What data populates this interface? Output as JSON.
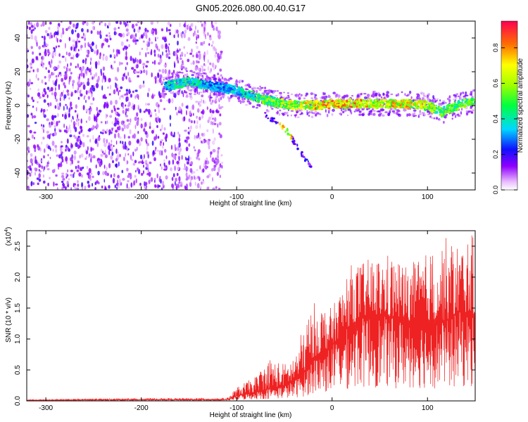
{
  "figure": {
    "title": "GN05.2026.080.00.40.G17"
  },
  "chart_data": [
    {
      "type": "heatmap",
      "xlabel": "Height of straight line (km)",
      "ylabel": "Frequency (Hz)",
      "xlim": [
        -320,
        150
      ],
      "ylim": [
        -50,
        50
      ],
      "x_ticks": [
        -300,
        -200,
        -100,
        0,
        100
      ],
      "y_ticks": [
        -40,
        -20,
        0,
        20,
        40
      ],
      "colorbar": {
        "label": "Normalized spectral amplitude",
        "range": [
          0,
          0.95
        ],
        "ticks": [
          0.0,
          0.2,
          0.4,
          0.6,
          0.8
        ],
        "tick_labels": [
          "0.0",
          "0.2",
          "0.4",
          "0.6",
          "0.8"
        ]
      },
      "noise_region": {
        "x": [
          -320,
          -115
        ],
        "y": [
          -50,
          50
        ]
      },
      "signal_track": [
        {
          "x": -170,
          "freq": 12,
          "amp": 0.45
        },
        {
          "x": -150,
          "freq": 14,
          "amp": 0.55
        },
        {
          "x": -120,
          "freq": 11,
          "amp": 0.35
        },
        {
          "x": -100,
          "freq": 9,
          "amp": 0.45
        },
        {
          "x": -80,
          "freq": 5,
          "amp": 0.55
        },
        {
          "x": -60,
          "freq": 2,
          "amp": 0.7
        },
        {
          "x": -40,
          "freq": 0,
          "amp": 0.75
        },
        {
          "x": -20,
          "freq": 0,
          "amp": 0.85
        },
        {
          "x": 0,
          "freq": 1,
          "amp": 0.9
        },
        {
          "x": 20,
          "freq": 1,
          "amp": 0.9
        },
        {
          "x": 40,
          "freq": 1,
          "amp": 0.85
        },
        {
          "x": 60,
          "freq": 1,
          "amp": 0.85
        },
        {
          "x": 80,
          "freq": 1,
          "amp": 0.85
        },
        {
          "x": 100,
          "freq": 0,
          "amp": 0.8
        },
        {
          "x": 115,
          "freq": -4,
          "amp": 0.6
        },
        {
          "x": 130,
          "freq": 0,
          "amp": 0.65
        },
        {
          "x": 150,
          "freq": 3,
          "amp": 0.6
        }
      ],
      "branch_track": [
        {
          "x": -70,
          "freq": -5
        },
        {
          "x": -47,
          "freq": -15
        },
        {
          "x": -30,
          "freq": -30
        },
        {
          "x": -22,
          "freq": -37
        }
      ]
    },
    {
      "type": "line",
      "xlabel": "Height of straight line (km)",
      "ylabel": "SNR (10 * v/v)",
      "y_multiplier": "(x10",
      "y_multiplier_exp": "4",
      "y_multiplier_close": ")",
      "xlim": [
        -320,
        150
      ],
      "ylim": [
        0,
        2.75
      ],
      "x_ticks": [
        -300,
        -200,
        -100,
        0,
        100
      ],
      "y_ticks": [
        0.0,
        0.5,
        1.0,
        1.5,
        2.0,
        2.5
      ],
      "y_tick_labels": [
        "0.0",
        "0.5",
        "1.0",
        "1.5",
        "2.0",
        "2.5"
      ],
      "color": "#ee2222",
      "envelope": [
        {
          "x": -320,
          "mean": 0.01,
          "peak": 0.02
        },
        {
          "x": -230,
          "mean": 0.02,
          "peak": 0.04
        },
        {
          "x": -110,
          "mean": 0.02,
          "peak": 0.05
        },
        {
          "x": -100,
          "mean": 0.08,
          "peak": 0.22
        },
        {
          "x": -80,
          "mean": 0.15,
          "peak": 0.4
        },
        {
          "x": -66,
          "mean": 0.2,
          "peak": 0.72
        },
        {
          "x": -50,
          "mean": 0.25,
          "peak": 0.6
        },
        {
          "x": -40,
          "mean": 0.32,
          "peak": 0.75
        },
        {
          "x": -30,
          "mean": 0.45,
          "peak": 1.2
        },
        {
          "x": -20,
          "mean": 0.7,
          "peak": 1.6
        },
        {
          "x": 0,
          "mean": 0.9,
          "peak": 1.5
        },
        {
          "x": 20,
          "mean": 1.25,
          "peak": 2.2
        },
        {
          "x": 40,
          "mean": 1.4,
          "peak": 2.3
        },
        {
          "x": 60,
          "mean": 1.35,
          "peak": 2.4
        },
        {
          "x": 80,
          "mean": 1.3,
          "peak": 2.2
        },
        {
          "x": 100,
          "mean": 1.3,
          "peak": 2.4
        },
        {
          "x": 120,
          "mean": 1.3,
          "peak": 2.65
        },
        {
          "x": 135,
          "mean": 1.45,
          "peak": 2.55
        },
        {
          "x": 150,
          "mean": 1.4,
          "peak": 2.72
        }
      ]
    }
  ]
}
